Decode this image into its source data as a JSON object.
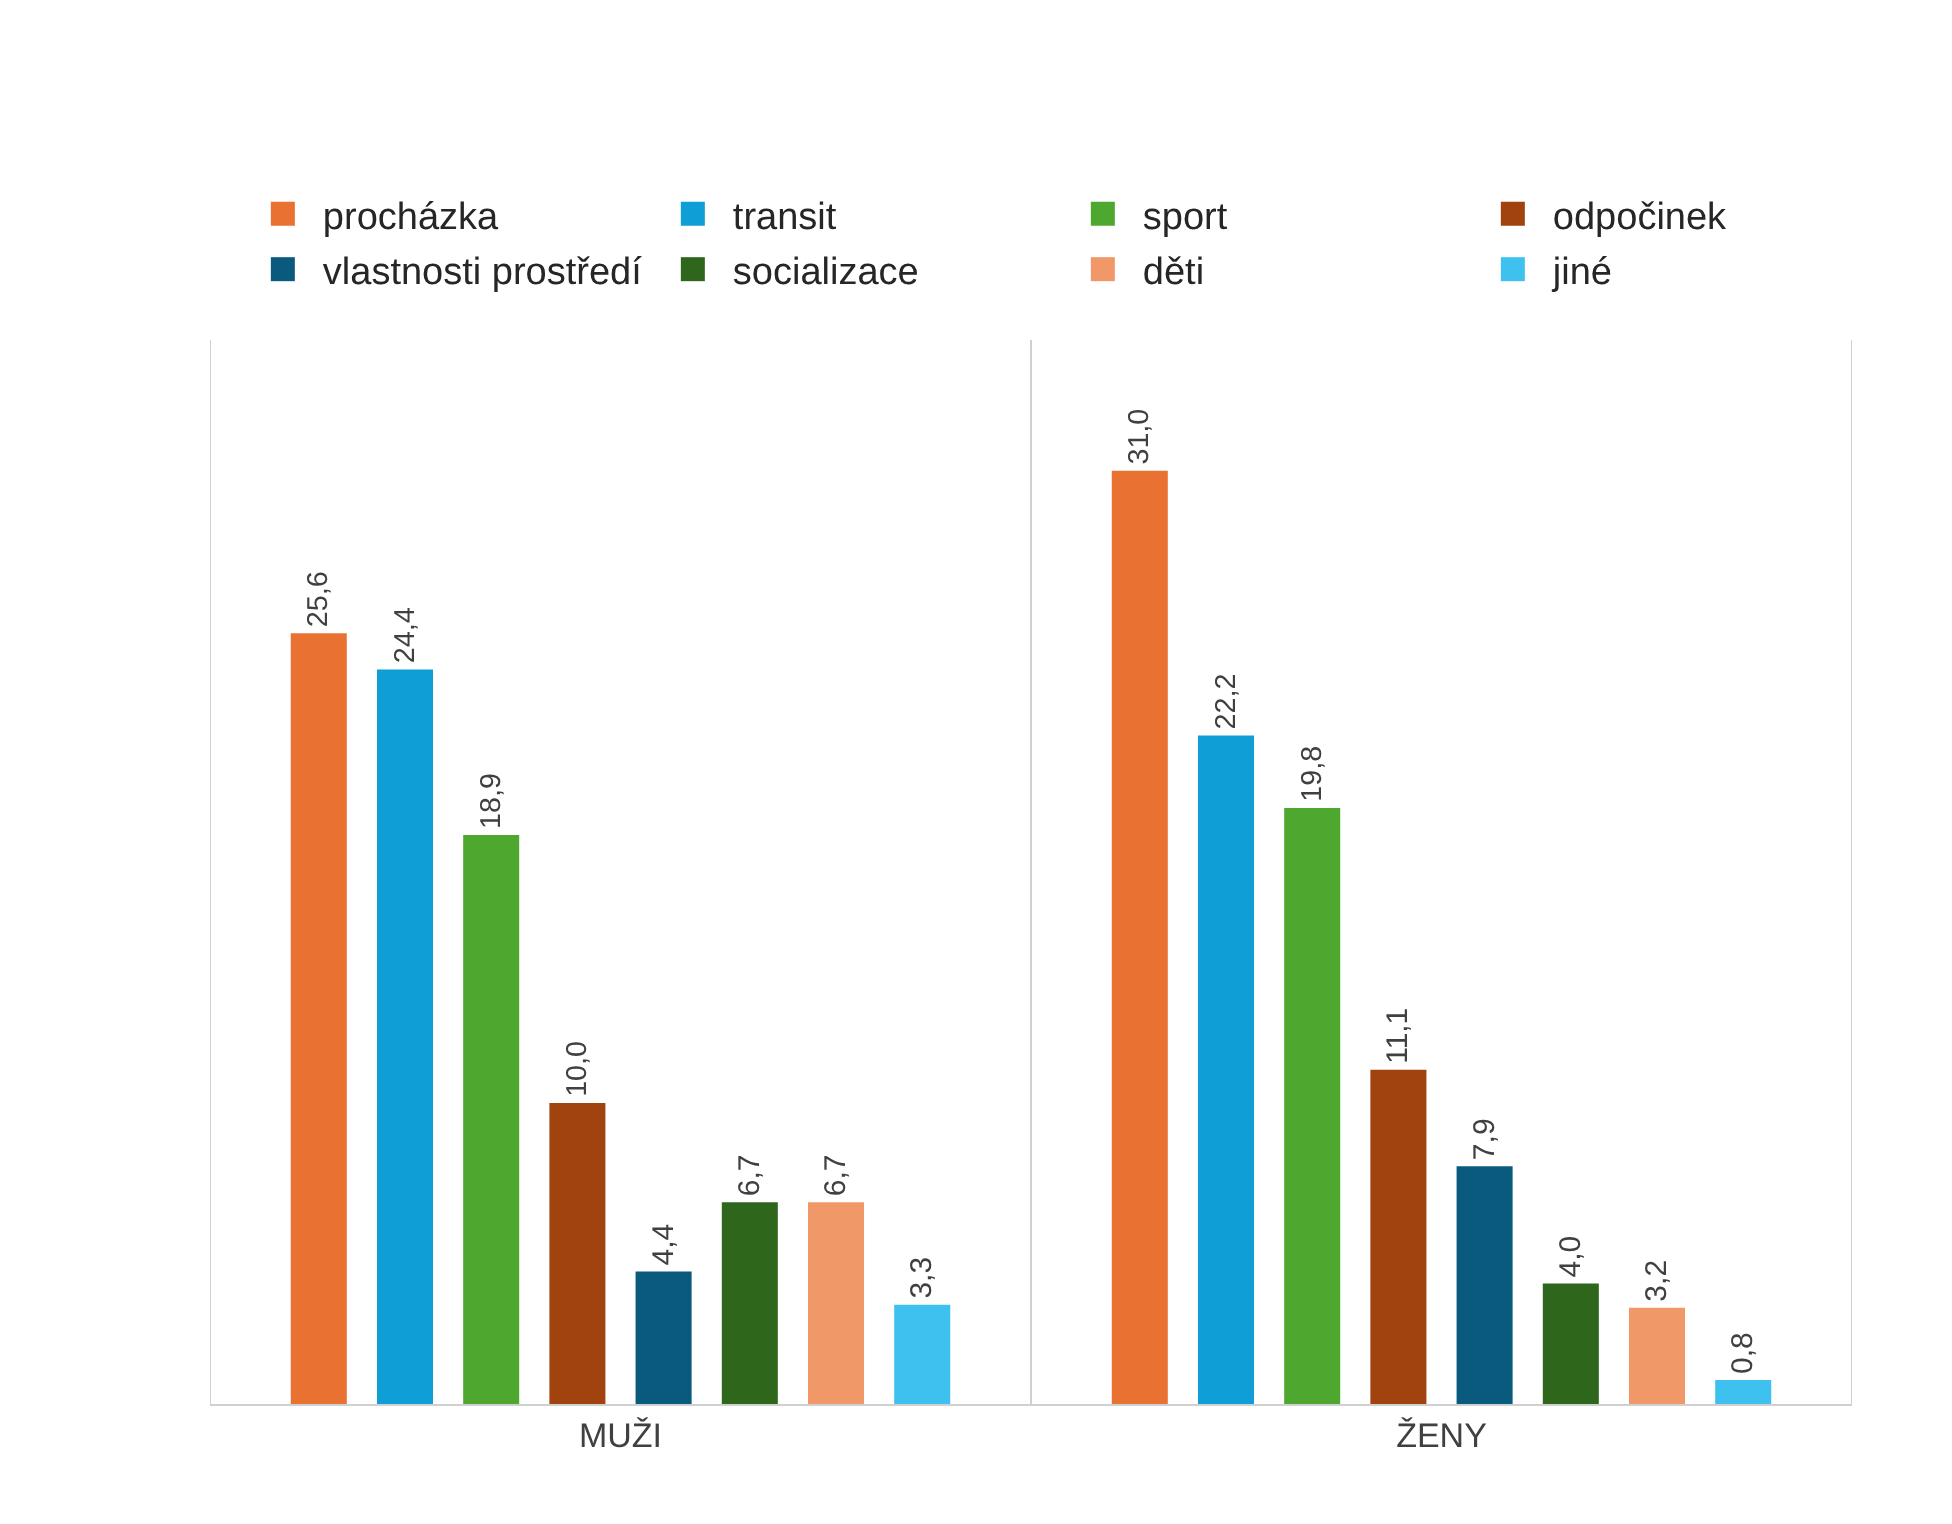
{
  "chart_data": {
    "type": "bar",
    "categories": [
      "MUŽI",
      "ŽENY"
    ],
    "series": [
      {
        "name": "procházka",
        "color": "#e97132",
        "values": [
          25.6,
          31.0
        ],
        "value_labels": [
          "25,6",
          "31,0"
        ]
      },
      {
        "name": "transit",
        "color": "#0f9ed5",
        "values": [
          24.4,
          22.2
        ],
        "value_labels": [
          "24,4",
          "22,2"
        ]
      },
      {
        "name": "sport",
        "color": "#4ea72e",
        "values": [
          18.9,
          19.8
        ],
        "value_labels": [
          "18,9",
          "19,8"
        ]
      },
      {
        "name": "odpočinek",
        "color": "#a0430f",
        "values": [
          10.0,
          11.1
        ],
        "value_labels": [
          "10,0",
          "11,1"
        ]
      },
      {
        "name": "vlastnosti prostředí",
        "color": "#095a7d",
        "values": [
          4.4,
          7.9
        ],
        "value_labels": [
          "4,4",
          "7,9"
        ]
      },
      {
        "name": "socializace",
        "color": "#2e661b",
        "values": [
          6.7,
          4.0
        ],
        "value_labels": [
          "6,7",
          "4,0"
        ]
      },
      {
        "name": "děti",
        "color": "#f19868",
        "values": [
          6.7,
          3.2
        ],
        "value_labels": [
          "6,7",
          "3,2"
        ]
      },
      {
        "name": "jiné",
        "color": "#3fc1f0",
        "values": [
          3.3,
          0.8
        ],
        "value_labels": [
          "3,3",
          "0,8"
        ]
      }
    ],
    "legend": "top",
    "grid": "x",
    "tick_labels": "x"
  }
}
